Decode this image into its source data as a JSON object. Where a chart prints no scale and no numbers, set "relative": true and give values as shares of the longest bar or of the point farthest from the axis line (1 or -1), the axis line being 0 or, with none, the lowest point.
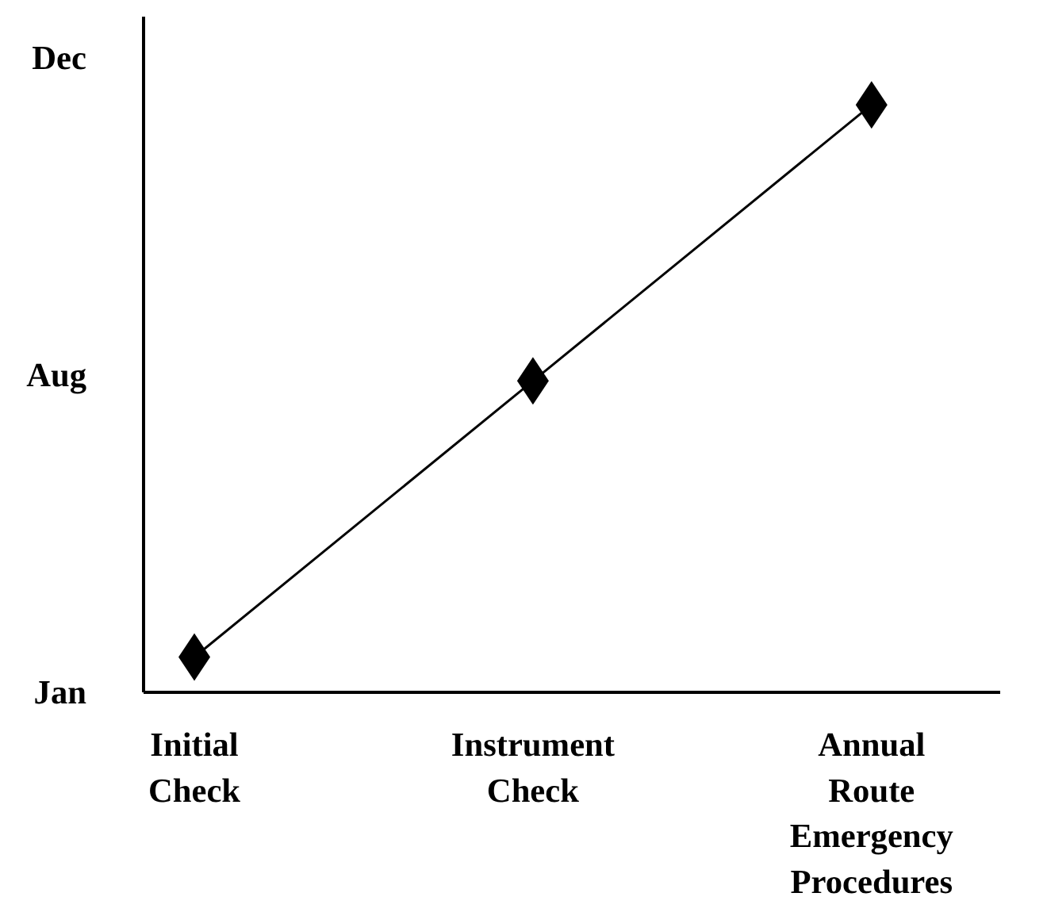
{
  "chart_data": {
    "type": "scatter",
    "relative": true,
    "categories": [
      "Initial Check",
      "Instrument Check",
      "Annual Route Emergency Procedures"
    ],
    "series": [
      {
        "color": "#000000",
        "values": [
          0.06,
          0.53,
          1
        ]
      },
      {
        "type": "line",
        "marker": "none",
        "color": "#000000",
        "values": [
          0.06,
          0.53,
          1
        ]
      }
    ],
    "marker": "diamond",
    "annotations": [
      "Jan",
      "Aug",
      "Dec"
    ],
    "grid": false
  }
}
